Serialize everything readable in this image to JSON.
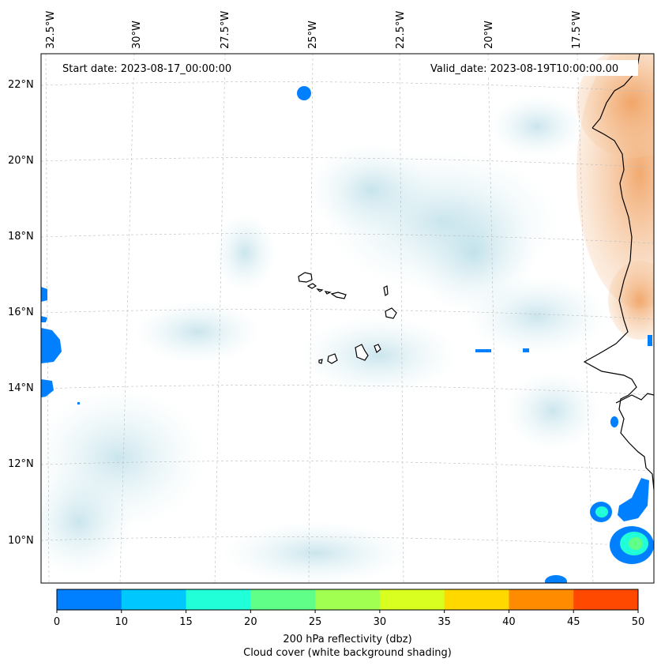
{
  "map": {
    "start_date_label": "Start date: 2023-08-17_00:00:00",
    "valid_date_label": "Valid_date: 2023-08-19T10:00:00.00",
    "lon_labels": [
      "32.5°W",
      "30°W",
      "27.5°W",
      "25°W",
      "22.5°W",
      "20°W",
      "17.5°W"
    ],
    "lat_labels": [
      "22°N",
      "20°N",
      "18°N",
      "16°N",
      "14°N",
      "12°N",
      "10°N"
    ],
    "features": [
      "Cape Verde islands",
      "West African coastline",
      "cloud cover shading",
      "reflectivity cells"
    ]
  },
  "colorbar": {
    "ticks": [
      "0",
      "10",
      "15",
      "20",
      "25",
      "30",
      "35",
      "40",
      "45",
      "50"
    ],
    "colors": [
      "#0080ff",
      "#00c8ff",
      "#20ffd8",
      "#60ff88",
      "#a0ff50",
      "#d8ff20",
      "#ffd800",
      "#ff8c00",
      "#ff4800"
    ],
    "label_line1": "200 hPa reflectivity (dbz)",
    "label_line2": "Cloud cover (white background shading)"
  }
}
